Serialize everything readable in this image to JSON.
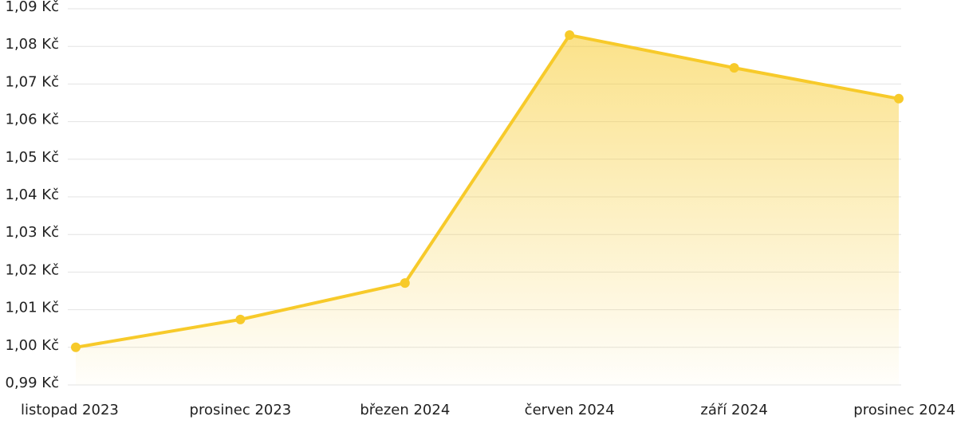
{
  "chart_data": {
    "type": "line",
    "categories": [
      "listopad 2023",
      "prosinec 2023",
      "březen 2024",
      "červen 2024",
      "září 2024",
      "prosinec 2024"
    ],
    "values": [
      1.0,
      1.0074,
      1.0171,
      1.083,
      1.0743,
      1.0661
    ],
    "color": "#f7ca2a",
    "ylim": [
      0.99,
      1.09
    ],
    "yticks": [
      {
        "value": 0.99,
        "label": "0,99 Kč"
      },
      {
        "value": 1.0,
        "label": "1,00 Kč"
      },
      {
        "value": 1.01,
        "label": "1,01 Kč"
      },
      {
        "value": 1.02,
        "label": "1,02 Kč"
      },
      {
        "value": 1.03,
        "label": "1,03 Kč"
      },
      {
        "value": 1.04,
        "label": "1,04 Kč"
      },
      {
        "value": 1.05,
        "label": "1,05 Kč"
      },
      {
        "value": 1.06,
        "label": "1,06 Kč"
      },
      {
        "value": 1.07,
        "label": "1,07 Kč"
      },
      {
        "value": 1.08,
        "label": "1,08 Kč"
      },
      {
        "value": 1.09,
        "label": "1,09 Kč"
      }
    ],
    "grid": true,
    "area": true
  }
}
